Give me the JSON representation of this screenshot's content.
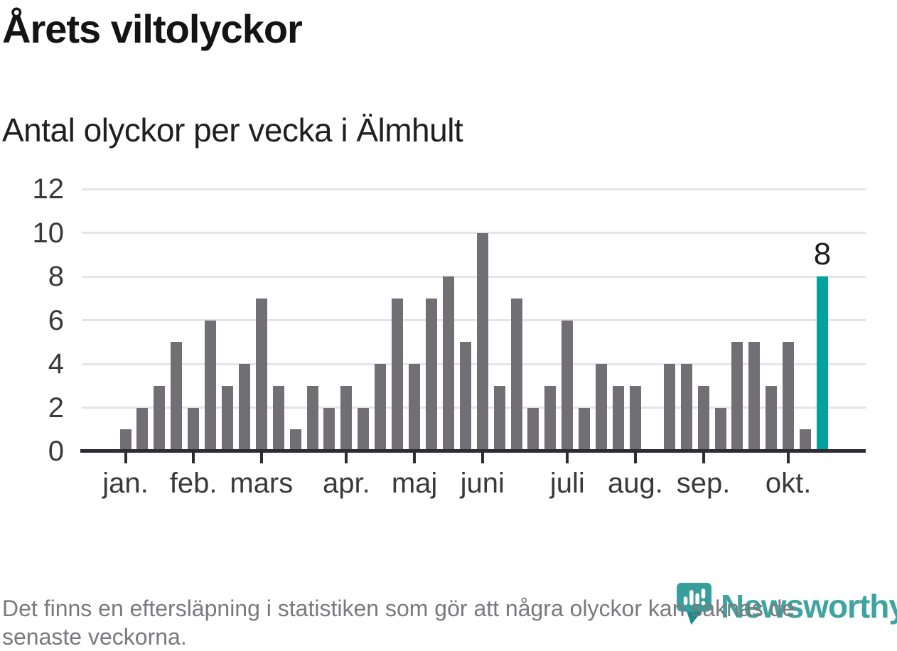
{
  "header": {
    "title": "Årets viltolyckor",
    "subtitle": "Antal olyckor per vecka i Älmhult"
  },
  "chart_data": {
    "type": "bar",
    "title": "Årets viltolyckor",
    "subtitle": "Antal olyckor per vecka i Älmhult",
    "x_unit": "vecka",
    "n_weeks": 42,
    "values": [
      1,
      2,
      3,
      5,
      2,
      6,
      3,
      4,
      7,
      3,
      1,
      3,
      2,
      3,
      2,
      4,
      7,
      4,
      7,
      8,
      5,
      10,
      3,
      7,
      2,
      3,
      6,
      2,
      4,
      3,
      3,
      0,
      4,
      4,
      3,
      2,
      5,
      5,
      3,
      5,
      1,
      8
    ],
    "month_ticks": [
      {
        "label": "jan.",
        "week_index": 0
      },
      {
        "label": "feb.",
        "week_index": 4
      },
      {
        "label": "mars",
        "week_index": 8
      },
      {
        "label": "apr.",
        "week_index": 13
      },
      {
        "label": "maj",
        "week_index": 17
      },
      {
        "label": "juni",
        "week_index": 21
      },
      {
        "label": "juli",
        "week_index": 26
      },
      {
        "label": "aug.",
        "week_index": 30
      },
      {
        "label": "sep.",
        "week_index": 34
      },
      {
        "label": "okt.",
        "week_index": 39
      }
    ],
    "y_ticks": [
      0,
      2,
      4,
      6,
      8,
      10,
      12
    ],
    "ylim": [
      0,
      12
    ],
    "grid": true,
    "legend": false,
    "highlight": {
      "index": 41,
      "label": "8"
    },
    "colors": {
      "bar": "#716E74",
      "highlight": "#00A29B",
      "grid": "#E5E4E6",
      "axis": "#2E2C31",
      "tick_label": "#3A383D"
    }
  },
  "footer": {
    "note_line1": "Det finns en eftersläpning i statistiken som gör att några olyckor kan saknas de",
    "note_line2": "senaste veckorna."
  },
  "logo": {
    "wordmark": "Newsworthy",
    "icon": "newsworthy-speech-bubble-bar-chart-icon",
    "color": "#3FA3A0"
  }
}
